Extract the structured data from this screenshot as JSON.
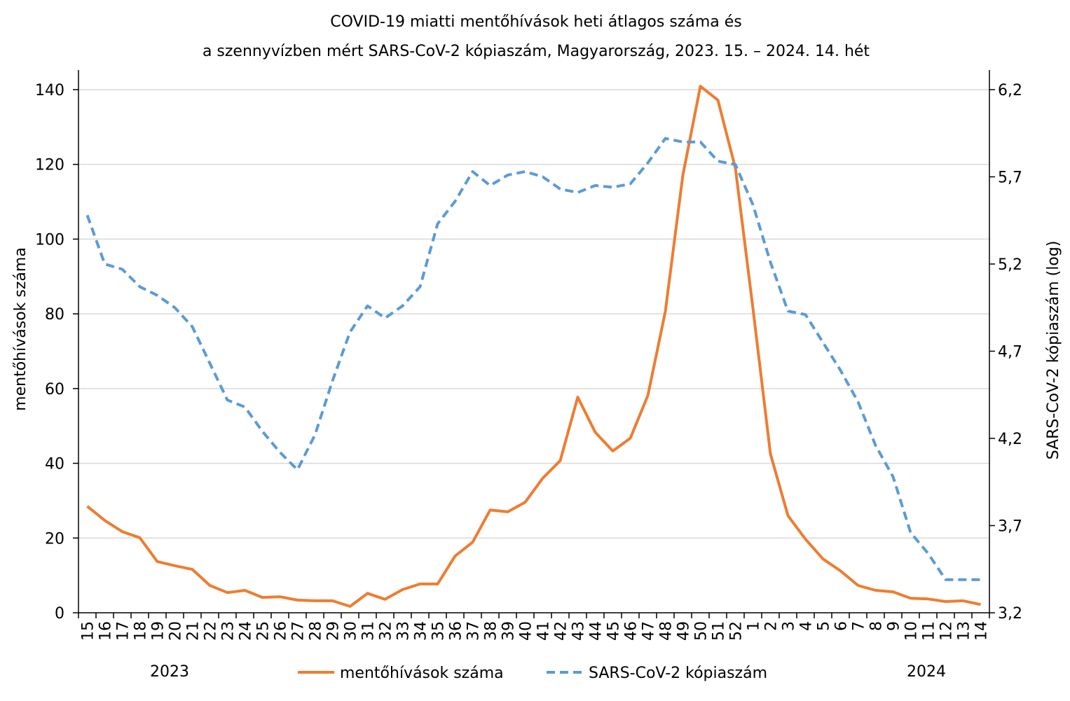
{
  "chart_data": {
    "type": "line",
    "title": [
      "COVID-19 miatti mentőhívások heti átlagos száma és",
      "a szennyvízben mért SARS-CoV-2 kópiaszám, Magyarország, 2023. 15. – 2024. 14. hét"
    ],
    "y_label": "mentőhívások száma",
    "y2_label": "SARS-CoV-2 kópiaszám (log)",
    "year_labels": [
      "2023",
      "2024"
    ],
    "categories": [
      "15",
      "16",
      "17",
      "18",
      "19",
      "20",
      "21",
      "22",
      "23",
      "24",
      "25",
      "26",
      "27",
      "28",
      "29",
      "30",
      "31",
      "32",
      "33",
      "34",
      "35",
      "36",
      "37",
      "38",
      "39",
      "40",
      "41",
      "42",
      "43",
      "44",
      "45",
      "46",
      "47",
      "48",
      "49",
      "50",
      "51",
      "52",
      "1",
      "2",
      "3",
      "4",
      "5",
      "6",
      "7",
      "8",
      "9",
      "10",
      "11",
      "12",
      "13",
      "14"
    ],
    "series": [
      {
        "name": "mentőhívások száma",
        "color": "#ed7d31",
        "dash": false,
        "values": [
          28.5,
          24.7,
          21.7,
          20.1,
          13.7,
          12.6,
          11.6,
          7.3,
          5.4,
          6.0,
          4.1,
          4.3,
          3.4,
          3.2,
          3.2,
          1.7,
          5.2,
          3.6,
          6.2,
          7.7,
          7.7,
          15.2,
          18.9,
          27.5,
          27.0,
          29.6,
          36.0,
          40.7,
          57.7,
          48.3,
          43.3,
          46.7,
          58.1,
          80.6,
          117.1,
          140.9,
          137.2,
          119.0,
          81.5,
          42.5,
          26.0,
          19.7,
          14.4,
          11.2,
          7.3,
          6.0,
          5.6,
          3.9,
          3.7,
          3.0,
          3.2,
          2.2
        ]
      },
      {
        "name": "SARS-CoV-2 kópiaszám",
        "color": "#5b9bd5",
        "dash": true,
        "axis": "y2",
        "values": [
          5.48,
          5.2,
          5.17,
          5.07,
          5.02,
          4.95,
          4.84,
          4.63,
          4.42,
          4.38,
          4.24,
          4.12,
          4.02,
          4.22,
          4.53,
          4.81,
          4.96,
          4.89,
          4.96,
          5.07,
          5.43,
          5.56,
          5.73,
          5.65,
          5.71,
          5.73,
          5.7,
          5.63,
          5.61,
          5.65,
          5.64,
          5.66,
          5.78,
          5.92,
          5.9,
          5.9,
          5.79,
          5.77,
          5.54,
          5.21,
          4.93,
          4.91,
          4.75,
          4.59,
          4.41,
          4.16,
          3.98,
          3.66,
          3.54,
          3.39,
          3.39,
          3.39
        ]
      }
    ],
    "ylim": [
      0,
      140
    ],
    "yticks": [
      0,
      20,
      40,
      60,
      80,
      100,
      120,
      140
    ],
    "y2lim": [
      3.2,
      6.2
    ],
    "y2ticks": [
      {
        "value": 3.2,
        "label": "3,2"
      },
      {
        "value": 3.7,
        "label": "3,7"
      },
      {
        "value": 4.2,
        "label": "4,2"
      },
      {
        "value": 4.7,
        "label": "4,7"
      },
      {
        "value": 5.2,
        "label": "5,2"
      },
      {
        "value": 5.7,
        "label": "5,7"
      },
      {
        "value": 6.2,
        "label": "6,2"
      }
    ],
    "grid": true,
    "legend": "bottom"
  }
}
